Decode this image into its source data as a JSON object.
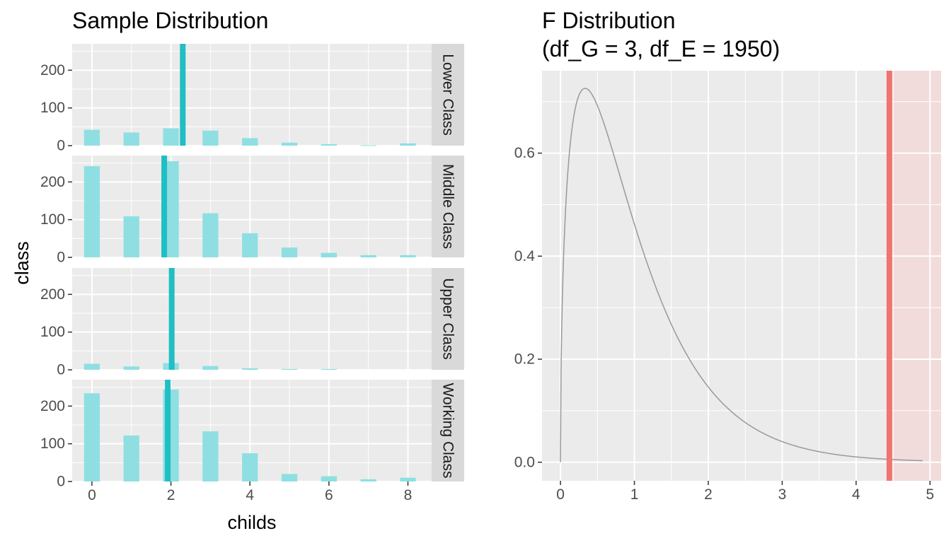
{
  "chart_data": [
    {
      "type": "bar",
      "title": "Sample Distribution",
      "xlabel": "childs",
      "ylabel": "class",
      "xlim": [
        -0.5,
        8.6
      ],
      "ylim": [
        0,
        270
      ],
      "x_ticks": [
        0,
        2,
        4,
        6,
        8
      ],
      "y_ticks": [
        0,
        100,
        200
      ],
      "bar_color": "#8fdfe2",
      "mean_line_color": "#1fbfc4",
      "panel_color": "#ebebeb",
      "strip_color": "#d9d9d9",
      "categories": [
        0,
        1,
        2,
        3,
        4,
        5,
        6,
        7,
        8
      ],
      "series": [
        {
          "name": "Lower Class",
          "values": [
            42,
            35,
            46,
            40,
            20,
            8,
            4,
            1,
            6
          ],
          "mean": 2.3
        },
        {
          "name": "Middle Class",
          "values": [
            242,
            109,
            255,
            117,
            64,
            26,
            12,
            6,
            6
          ],
          "mean": 1.83
        },
        {
          "name": "Upper Class",
          "values": [
            16,
            9,
            18,
            10,
            4,
            2,
            2,
            0,
            0
          ],
          "mean": 2.02
        },
        {
          "name": "Working Class",
          "values": [
            234,
            122,
            244,
            133,
            75,
            20,
            14,
            6,
            10
          ],
          "mean": 1.92
        }
      ]
    },
    {
      "type": "line",
      "title": "F Distribution",
      "subtitle": "(df_G = 3, df_E = 1950)",
      "df_G": 3,
      "df_E": 1950,
      "xlim": [
        -0.25,
        5.15
      ],
      "ylim": [
        -0.036,
        0.76
      ],
      "x_ticks": [
        0,
        1,
        2,
        3,
        4,
        5
      ],
      "y_ticks": [
        0.0,
        0.2,
        0.4,
        0.6
      ],
      "x_range": [
        0,
        4.9
      ],
      "curve_color": "#999999",
      "f_statistic": 4.45,
      "f_line_color": "#f07470",
      "shade_color": "#f1dbdb",
      "panel_color": "#ebebeb"
    }
  ]
}
